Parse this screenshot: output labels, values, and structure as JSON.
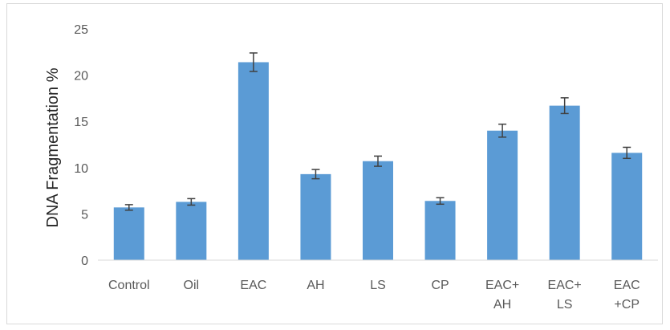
{
  "chart_data": {
    "type": "bar",
    "title": "",
    "xlabel": "",
    "ylabel": "DNA Fragmentation %",
    "ylim": [
      0,
      25
    ],
    "yticks": [
      0,
      5,
      10,
      15,
      20,
      25
    ],
    "grid": false,
    "legend": "none",
    "bar_color": "#5b9bd5",
    "categories": [
      [
        "Control"
      ],
      [
        "Oil"
      ],
      [
        "EAC"
      ],
      [
        "AH"
      ],
      [
        "LS"
      ],
      [
        "CP"
      ],
      [
        "EAC+",
        "AH"
      ],
      [
        "EAC+",
        "LS"
      ],
      [
        "EAC",
        "+CP"
      ]
    ],
    "values": [
      5.7,
      6.3,
      21.4,
      9.3,
      10.7,
      6.4,
      14.0,
      16.7,
      11.6
    ],
    "errors": [
      0.3,
      0.35,
      1.0,
      0.5,
      0.55,
      0.35,
      0.7,
      0.85,
      0.6
    ]
  }
}
